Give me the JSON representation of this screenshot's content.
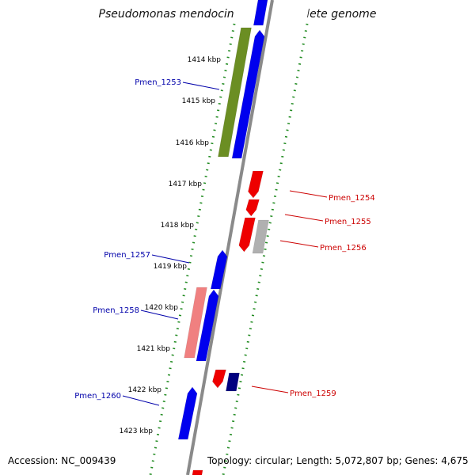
{
  "title": "Pseudomonas mendocina ymp, complete genome",
  "footer": {
    "accession": "Accession: NC_009439",
    "summary": "Topology: circular; Length: 5,072,807 bp; Genes: 4,675"
  },
  "colors": {
    "backbone": "#8a8a8a",
    "ruler": "#1f8a1f",
    "forward_gene": "#0000ee",
    "reverse_gene": "#ee0000",
    "forward_label": "#0000aa",
    "reverse_label": "#cc0000",
    "olive_feature": "#6b8e23",
    "pink_feature": "#f08080",
    "gray_feature": "#b0b0b0",
    "navy_feature": "#000080"
  },
  "ticks": [
    {
      "label": "1414 kbp"
    },
    {
      "label": "1415 kbp"
    },
    {
      "label": "1416 kbp"
    },
    {
      "label": "1417 kbp"
    },
    {
      "label": "1418 kbp"
    },
    {
      "label": "1419 kbp"
    },
    {
      "label": "1420 kbp"
    },
    {
      "label": "1421 kbp"
    },
    {
      "label": "1422 kbp"
    },
    {
      "label": "1423 kbp"
    }
  ],
  "gene_labels": [
    {
      "id": "Pmen_1253",
      "strand": "forward"
    },
    {
      "id": "Pmen_1254",
      "strand": "reverse"
    },
    {
      "id": "Pmen_1255",
      "strand": "reverse"
    },
    {
      "id": "Pmen_1256",
      "strand": "reverse"
    },
    {
      "id": "Pmen_1257",
      "strand": "forward"
    },
    {
      "id": "Pmen_1258",
      "strand": "forward"
    },
    {
      "id": "Pmen_1259",
      "strand": "reverse"
    },
    {
      "id": "Pmen_1260",
      "strand": "forward"
    }
  ]
}
